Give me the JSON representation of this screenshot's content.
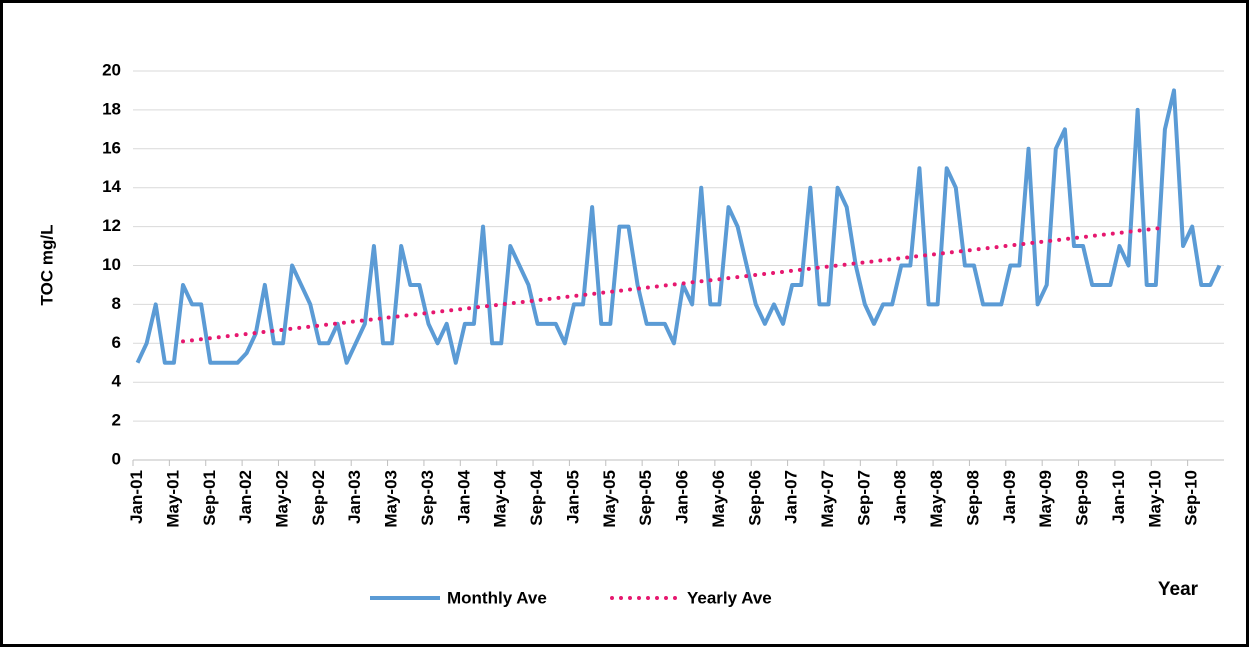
{
  "chart_data": {
    "type": "line",
    "y_label": "TOC mg/L",
    "x_label": "Year",
    "categories": [
      "Jan-01",
      null,
      null,
      null,
      "May-01",
      null,
      null,
      null,
      "Sep-01",
      null,
      null,
      null,
      "Jan-02",
      null,
      null,
      null,
      "May-02",
      null,
      null,
      null,
      "Sep-02",
      null,
      null,
      null,
      "Jan-03",
      null,
      null,
      null,
      "May-03",
      null,
      null,
      null,
      "Sep-03",
      null,
      null,
      null,
      "Jan-04",
      null,
      null,
      null,
      "May-04",
      null,
      null,
      null,
      "Sep-04",
      null,
      null,
      null,
      "Jan-05",
      null,
      null,
      null,
      "May-05",
      null,
      null,
      null,
      "Sep-05",
      null,
      null,
      null,
      "Jan-06",
      null,
      null,
      null,
      "May-06",
      null,
      null,
      null,
      "Sep-06",
      null,
      null,
      null,
      "Jan-07",
      null,
      null,
      null,
      "May-07",
      null,
      null,
      null,
      "Sep-07",
      null,
      null,
      null,
      "Jan-08",
      null,
      null,
      null,
      "May-08",
      null,
      null,
      null,
      "Sep-08",
      null,
      null,
      null,
      "Jan-09",
      null,
      null,
      null,
      "May-09",
      null,
      null,
      null,
      "Sep-09",
      null,
      null,
      null,
      "Jan-10",
      null,
      null,
      null,
      "May-10",
      null,
      null,
      null,
      "Sep-10",
      null,
      null,
      null
    ],
    "series": [
      {
        "name": "Monthly Ave",
        "color": "#5b9bd5",
        "style": "solid",
        "values": [
          5,
          6,
          8,
          5,
          5,
          9,
          8,
          8,
          5,
          5,
          5,
          5,
          5.5,
          6.5,
          9,
          6,
          6,
          10,
          9,
          8,
          6,
          6,
          7,
          5,
          6,
          7,
          11,
          6,
          6,
          11,
          9,
          9,
          7,
          6,
          7,
          5,
          7,
          7,
          12,
          6,
          6,
          11,
          10,
          9,
          7,
          7,
          7,
          6,
          8,
          8,
          13,
          7,
          7,
          12,
          12,
          9,
          7,
          7,
          7,
          6,
          9,
          8,
          14,
          8,
          8,
          13,
          12,
          10,
          8,
          7,
          8,
          7,
          9,
          9,
          14,
          8,
          8,
          14,
          13,
          10,
          8,
          7,
          8,
          8,
          10,
          10,
          15,
          8,
          8,
          15,
          14,
          10,
          10,
          8,
          8,
          8,
          10,
          10,
          16,
          8,
          9,
          16,
          17,
          11,
          11,
          9,
          9,
          9,
          11,
          10,
          18,
          9,
          9,
          17,
          19,
          11,
          12,
          9,
          9,
          10
        ]
      },
      {
        "name": "Yearly Ave",
        "color": "#e6186f",
        "style": "dotted",
        "connect_gaps": true,
        "values": [
          null,
          null,
          null,
          null,
          null,
          6.1,
          null,
          null,
          null,
          null,
          null,
          null,
          null,
          null,
          null,
          null,
          null,
          6.75,
          null,
          null,
          null,
          null,
          null,
          null,
          null,
          null,
          null,
          null,
          null,
          7.4,
          null,
          null,
          null,
          null,
          null,
          null,
          null,
          null,
          null,
          null,
          null,
          8.05,
          null,
          null,
          null,
          null,
          null,
          null,
          null,
          null,
          null,
          null,
          null,
          8.7,
          null,
          null,
          null,
          null,
          null,
          null,
          null,
          null,
          null,
          null,
          null,
          9.35,
          null,
          null,
          null,
          null,
          null,
          null,
          null,
          null,
          null,
          null,
          null,
          10.0,
          null,
          null,
          null,
          null,
          null,
          null,
          null,
          null,
          null,
          null,
          null,
          10.65,
          null,
          null,
          null,
          null,
          null,
          null,
          null,
          null,
          null,
          null,
          null,
          11.3,
          null,
          null,
          null,
          null,
          null,
          null,
          null,
          null,
          null,
          null,
          null,
          11.95,
          null,
          null,
          null,
          null,
          null,
          null
        ]
      }
    ],
    "ylim": [
      0,
      20
    ],
    "yticks": [
      0,
      2,
      4,
      6,
      8,
      10,
      12,
      14,
      16,
      18,
      20
    ],
    "grid": true,
    "legend": "bottom"
  }
}
